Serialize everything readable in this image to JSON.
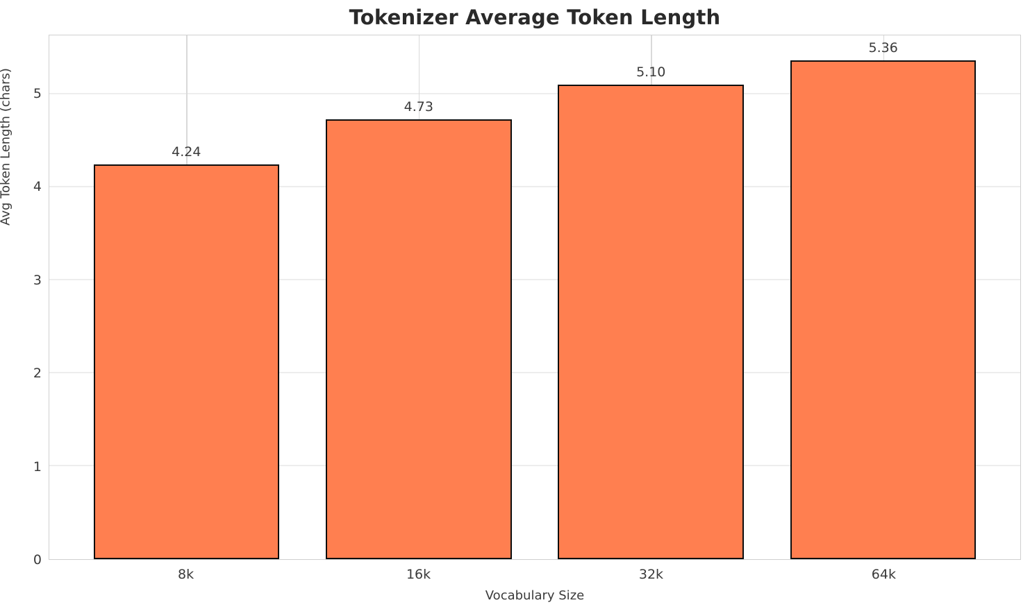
{
  "chart_data": {
    "type": "bar",
    "title": "Tokenizer Average Token Length",
    "xlabel": "Vocabulary Size",
    "ylabel": "Avg Token Length (chars)",
    "categories": [
      "8k",
      "16k",
      "32k",
      "64k"
    ],
    "values": [
      4.24,
      4.73,
      5.1,
      5.36
    ],
    "value_labels": [
      "4.24",
      "4.73",
      "5.10",
      "5.36"
    ],
    "yticks": [
      0,
      1,
      2,
      3,
      4,
      5
    ],
    "ylim": [
      0,
      5.63
    ],
    "xlim": [
      -0.59,
      3.59
    ],
    "bar_width_units": 0.8,
    "grid": "both",
    "legend": "none",
    "bar_color": "#FF7F50",
    "bar_edge_color": "#0d0d0d",
    "spine_color": "#cfcfcf",
    "hgrid_color": "#ededed",
    "vgrid_color": "#d9d9d9",
    "text_color": "#3a3a3a",
    "title_color": "#2a2a2a"
  }
}
